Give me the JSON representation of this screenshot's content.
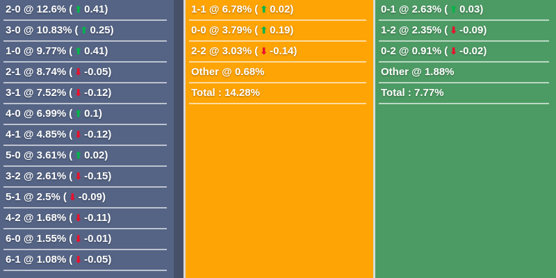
{
  "colors": {
    "page_background": "#465069",
    "home_panel": "#556485",
    "draw_panel": "#FFA405",
    "away_panel": "#4D9B64",
    "divider": "rgba(255,255,255,0.62)",
    "up_arrow": "#00B44B",
    "down_arrow": "#E8112D",
    "text": "#FFFFFF"
  },
  "format": {
    "at": " @ ",
    "open": "(",
    "close": ")"
  },
  "icons": {
    "up_glyph": "⬆",
    "down_glyph": "⬇"
  },
  "panels": [
    {
      "id": "home-scores",
      "rows": [
        {
          "score": "2-0",
          "pct": "12.6%",
          "dir": "up",
          "change": "0.41"
        },
        {
          "score": "3-0",
          "pct": "10.83%",
          "dir": "up",
          "change": "0.25"
        },
        {
          "score": "1-0",
          "pct": "9.77%",
          "dir": "up",
          "change": "0.41"
        },
        {
          "score": "2-1",
          "pct": "8.74%",
          "dir": "down",
          "change": "-0.05"
        },
        {
          "score": "3-1",
          "pct": "7.52%",
          "dir": "down",
          "change": "-0.12"
        },
        {
          "score": "4-0",
          "pct": "6.99%",
          "dir": "up",
          "change": "0.1"
        },
        {
          "score": "4-1",
          "pct": "4.85%",
          "dir": "down",
          "change": "-0.12"
        },
        {
          "score": "5-0",
          "pct": "3.61%",
          "dir": "up",
          "change": "0.02"
        },
        {
          "score": "3-2",
          "pct": "2.61%",
          "dir": "down",
          "change": "-0.15"
        },
        {
          "score": "5-1",
          "pct": "2.5%",
          "dir": "down",
          "change": "-0.09"
        },
        {
          "score": "4-2",
          "pct": "1.68%",
          "dir": "down",
          "change": "-0.11"
        },
        {
          "score": "6-0",
          "pct": "1.55%",
          "dir": "down",
          "change": "-0.01"
        },
        {
          "score": "6-1",
          "pct": "1.08%",
          "dir": "down",
          "change": "-0.05"
        }
      ]
    },
    {
      "id": "draw-scores",
      "rows": [
        {
          "score": "1-1",
          "pct": "6.78%",
          "dir": "up",
          "change": "0.02"
        },
        {
          "score": "0-0",
          "pct": "3.79%",
          "dir": "up",
          "change": "0.19"
        },
        {
          "score": "2-2",
          "pct": "3.03%",
          "dir": "down",
          "change": "-0.14"
        },
        {
          "text": "Other @ 0.68%"
        },
        {
          "text": "Total : 14.28%"
        }
      ]
    },
    {
      "id": "away-scores",
      "rows": [
        {
          "score": "0-1",
          "pct": "2.63%",
          "dir": "up",
          "change": "0.03"
        },
        {
          "score": "1-2",
          "pct": "2.35%",
          "dir": "down",
          "change": "-0.09"
        },
        {
          "score": "0-2",
          "pct": "0.91%",
          "dir": "down",
          "change": "-0.02"
        },
        {
          "text": "Other @ 1.88%"
        },
        {
          "text": "Total : 7.77%"
        }
      ]
    }
  ]
}
